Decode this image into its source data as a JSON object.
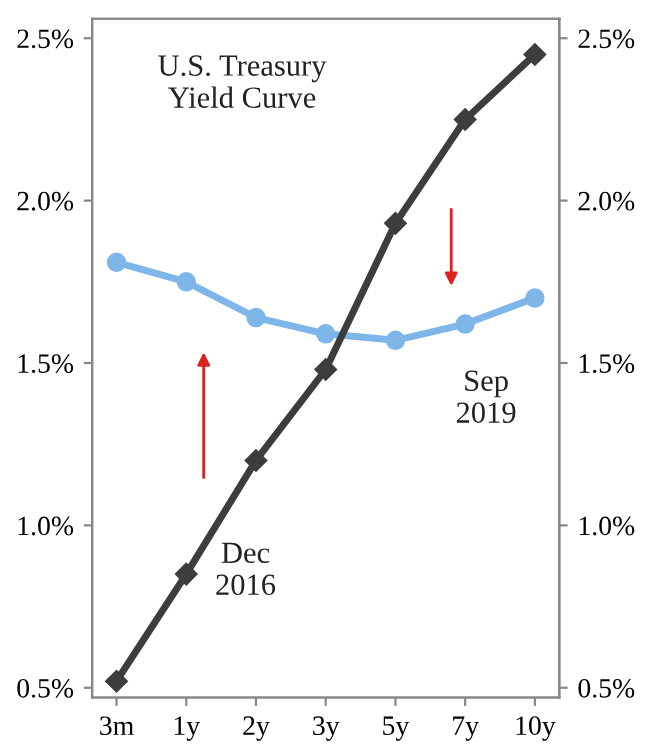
{
  "chart_data": {
    "type": "line",
    "title": "U.S. Treasury\nYield Curve",
    "categories": [
      "3m",
      "1y",
      "2y",
      "3y",
      "5y",
      "7y",
      "10y"
    ],
    "series": [
      {
        "name": "Dec\n2016",
        "color": "#3d3d3d",
        "marker": "diamond",
        "values": [
          0.52,
          0.85,
          1.2,
          1.48,
          1.93,
          2.25,
          2.45
        ]
      },
      {
        "name": "Sep\n2019",
        "color": "#7eb6ea",
        "marker": "circle",
        "values": [
          1.81,
          1.75,
          1.64,
          1.59,
          1.57,
          1.62,
          1.7
        ]
      }
    ],
    "ylim": [
      0.47,
      2.56
    ],
    "yticks": [
      {
        "value": 0.5,
        "label": "0.5%"
      },
      {
        "value": 1.0,
        "label": "1.0%"
      },
      {
        "value": 1.5,
        "label": "1.5%"
      },
      {
        "value": 2.0,
        "label": "2.0%"
      },
      {
        "value": 2.5,
        "label": "2.5%"
      }
    ],
    "y2lim": [
      0.47,
      2.56
    ],
    "y2ticks": [
      {
        "value": 0.5,
        "label": "0.5%"
      },
      {
        "value": 1.0,
        "label": "1.0%"
      },
      {
        "value": 1.5,
        "label": "1.5%"
      },
      {
        "value": 2.0,
        "label": "2.0%"
      },
      {
        "value": 2.5,
        "label": "2.5%"
      }
    ],
    "grid": false,
    "legend": false
  }
}
